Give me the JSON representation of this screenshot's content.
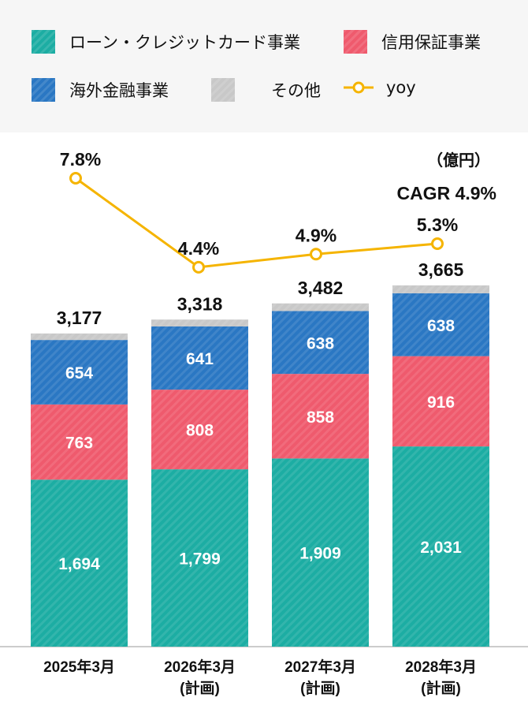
{
  "chart_data": {
    "type": "bar",
    "stacked": true,
    "unit": "（億円）",
    "annotation": "CAGR 4.9%",
    "categories": [
      [
        "2025年3月"
      ],
      [
        "2026年3月",
        "(計画)"
      ],
      [
        "2027年3月",
        "(計画)"
      ],
      [
        "2028年3月",
        "(計画)"
      ]
    ],
    "series": [
      {
        "name": "ローン・クレジットカード事業",
        "color": "#1cada3",
        "values": [
          1694,
          1799,
          1909,
          2031
        ],
        "labels": [
          "1,694",
          "1,799",
          "1,909",
          "2,031"
        ]
      },
      {
        "name": "信用保証事業",
        "color": "#ef5a6d",
        "values": [
          763,
          808,
          858,
          916
        ],
        "labels": [
          "763",
          "808",
          "858",
          "916"
        ]
      },
      {
        "name": "海外金融事業",
        "color": "#2a77c3",
        "values": [
          654,
          641,
          638,
          638
        ],
        "labels": [
          "654",
          "641",
          "638",
          "638"
        ]
      },
      {
        "name": "その他",
        "color": "#c8c8c8",
        "values": [
          66,
          70,
          77,
          80
        ]
      }
    ],
    "totals": [
      "3,177",
      "3,318",
      "3,482",
      "3,665"
    ],
    "yoy": {
      "name": "yoy",
      "color": "#f5b400",
      "values": [
        7.8,
        4.4,
        4.9,
        5.3
      ],
      "labels": [
        "7.8%",
        "4.4%",
        "4.9%",
        "5.3%"
      ]
    }
  }
}
